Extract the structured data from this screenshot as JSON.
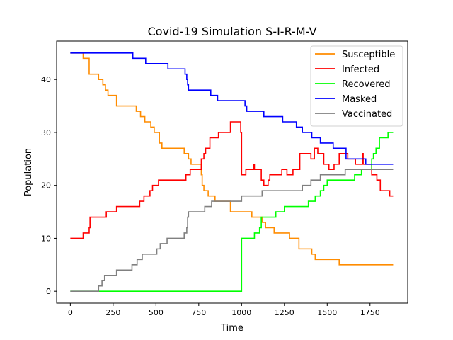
{
  "chart_data": {
    "type": "line",
    "title": "Covid-19 Simulation S-I-R-M-V",
    "xlabel": "Time",
    "ylabel": "Population",
    "xlim": [
      -80,
      1970
    ],
    "ylim": [
      -2.25,
      47.25
    ],
    "xticks": [
      0,
      250,
      500,
      750,
      1000,
      1250,
      1500,
      1750
    ],
    "yticks": [
      0,
      10,
      20,
      30,
      40
    ],
    "grid": false,
    "legend": "top-right",
    "series": [
      {
        "name": "Susceptible",
        "color": "#ff8c00",
        "points": [
          [
            0,
            45
          ],
          [
            75,
            45
          ],
          [
            75,
            44
          ],
          [
            110,
            44
          ],
          [
            110,
            41
          ],
          [
            165,
            41
          ],
          [
            165,
            40
          ],
          [
            190,
            40
          ],
          [
            190,
            39
          ],
          [
            205,
            39
          ],
          [
            205,
            38
          ],
          [
            220,
            38
          ],
          [
            220,
            37
          ],
          [
            270,
            37
          ],
          [
            270,
            35
          ],
          [
            385,
            35
          ],
          [
            385,
            34
          ],
          [
            410,
            34
          ],
          [
            410,
            33
          ],
          [
            435,
            33
          ],
          [
            435,
            32
          ],
          [
            470,
            32
          ],
          [
            470,
            31
          ],
          [
            490,
            31
          ],
          [
            490,
            30
          ],
          [
            520,
            30
          ],
          [
            520,
            28
          ],
          [
            535,
            28
          ],
          [
            535,
            27
          ],
          [
            665,
            27
          ],
          [
            665,
            26
          ],
          [
            690,
            26
          ],
          [
            690,
            25
          ],
          [
            705,
            25
          ],
          [
            705,
            24
          ],
          [
            765,
            24
          ],
          [
            765,
            22
          ],
          [
            770,
            22
          ],
          [
            770,
            20
          ],
          [
            780,
            20
          ],
          [
            780,
            19
          ],
          [
            805,
            19
          ],
          [
            805,
            18
          ],
          [
            845,
            18
          ],
          [
            845,
            17
          ],
          [
            935,
            17
          ],
          [
            935,
            15
          ],
          [
            1060,
            15
          ],
          [
            1060,
            14
          ],
          [
            1120,
            14
          ],
          [
            1120,
            13
          ],
          [
            1140,
            13
          ],
          [
            1140,
            12
          ],
          [
            1190,
            12
          ],
          [
            1190,
            11
          ],
          [
            1280,
            11
          ],
          [
            1280,
            10
          ],
          [
            1335,
            10
          ],
          [
            1335,
            8
          ],
          [
            1410,
            8
          ],
          [
            1410,
            7
          ],
          [
            1430,
            7
          ],
          [
            1430,
            6
          ],
          [
            1570,
            6
          ],
          [
            1570,
            5
          ],
          [
            1885,
            5
          ]
        ]
      },
      {
        "name": "Infected",
        "color": "#ff0000",
        "points": [
          [
            0,
            10
          ],
          [
            75,
            10
          ],
          [
            75,
            11
          ],
          [
            110,
            11
          ],
          [
            110,
            12
          ],
          [
            115,
            12
          ],
          [
            115,
            14
          ],
          [
            210,
            14
          ],
          [
            210,
            15
          ],
          [
            270,
            15
          ],
          [
            270,
            16
          ],
          [
            405,
            16
          ],
          [
            405,
            17
          ],
          [
            430,
            17
          ],
          [
            430,
            18
          ],
          [
            465,
            18
          ],
          [
            465,
            19
          ],
          [
            480,
            19
          ],
          [
            480,
            20
          ],
          [
            515,
            20
          ],
          [
            515,
            21
          ],
          [
            675,
            21
          ],
          [
            675,
            22
          ],
          [
            700,
            22
          ],
          [
            700,
            23
          ],
          [
            765,
            23
          ],
          [
            765,
            25
          ],
          [
            780,
            25
          ],
          [
            780,
            26
          ],
          [
            790,
            26
          ],
          [
            790,
            27
          ],
          [
            815,
            27
          ],
          [
            815,
            29
          ],
          [
            865,
            29
          ],
          [
            865,
            30
          ],
          [
            935,
            30
          ],
          [
            935,
            32
          ],
          [
            995,
            32
          ],
          [
            995,
            30
          ],
          [
            1000,
            30
          ],
          [
            1000,
            22
          ],
          [
            1025,
            22
          ],
          [
            1025,
            23
          ],
          [
            1070,
            23
          ],
          [
            1070,
            24
          ],
          [
            1075,
            24
          ],
          [
            1075,
            23
          ],
          [
            1115,
            23
          ],
          [
            1115,
            21
          ],
          [
            1130,
            21
          ],
          [
            1130,
            20
          ],
          [
            1155,
            20
          ],
          [
            1155,
            21
          ],
          [
            1165,
            21
          ],
          [
            1165,
            22
          ],
          [
            1235,
            22
          ],
          [
            1235,
            23
          ],
          [
            1265,
            23
          ],
          [
            1265,
            22
          ],
          [
            1300,
            22
          ],
          [
            1300,
            23
          ],
          [
            1340,
            23
          ],
          [
            1340,
            26
          ],
          [
            1405,
            26
          ],
          [
            1405,
            25
          ],
          [
            1425,
            25
          ],
          [
            1425,
            27
          ],
          [
            1445,
            27
          ],
          [
            1445,
            26
          ],
          [
            1480,
            26
          ],
          [
            1480,
            24
          ],
          [
            1510,
            24
          ],
          [
            1510,
            23
          ],
          [
            1540,
            23
          ],
          [
            1540,
            24
          ],
          [
            1570,
            24
          ],
          [
            1570,
            26
          ],
          [
            1620,
            26
          ],
          [
            1620,
            25
          ],
          [
            1665,
            25
          ],
          [
            1665,
            24
          ],
          [
            1705,
            24
          ],
          [
            1705,
            26
          ],
          [
            1710,
            26
          ],
          [
            1710,
            24
          ],
          [
            1760,
            24
          ],
          [
            1760,
            22
          ],
          [
            1790,
            22
          ],
          [
            1790,
            21
          ],
          [
            1810,
            21
          ],
          [
            1810,
            19
          ],
          [
            1865,
            19
          ],
          [
            1865,
            18
          ],
          [
            1885,
            18
          ]
        ]
      },
      {
        "name": "Recovered",
        "color": "#00ff00",
        "points": [
          [
            0,
            0
          ],
          [
            1000,
            0
          ],
          [
            1000,
            10
          ],
          [
            1075,
            10
          ],
          [
            1075,
            11
          ],
          [
            1105,
            11
          ],
          [
            1105,
            12
          ],
          [
            1115,
            12
          ],
          [
            1115,
            14
          ],
          [
            1200,
            14
          ],
          [
            1200,
            15
          ],
          [
            1250,
            15
          ],
          [
            1250,
            16
          ],
          [
            1390,
            16
          ],
          [
            1390,
            17
          ],
          [
            1430,
            17
          ],
          [
            1430,
            18
          ],
          [
            1460,
            18
          ],
          [
            1460,
            19
          ],
          [
            1480,
            19
          ],
          [
            1480,
            20
          ],
          [
            1500,
            20
          ],
          [
            1500,
            21
          ],
          [
            1660,
            21
          ],
          [
            1660,
            22
          ],
          [
            1700,
            22
          ],
          [
            1700,
            23
          ],
          [
            1760,
            23
          ],
          [
            1760,
            25
          ],
          [
            1770,
            25
          ],
          [
            1770,
            26
          ],
          [
            1785,
            26
          ],
          [
            1785,
            27
          ],
          [
            1805,
            27
          ],
          [
            1805,
            29
          ],
          [
            1855,
            29
          ],
          [
            1855,
            30
          ],
          [
            1885,
            30
          ]
        ]
      },
      {
        "name": "Masked",
        "color": "#0000ff",
        "points": [
          [
            0,
            45
          ],
          [
            365,
            45
          ],
          [
            365,
            44
          ],
          [
            440,
            44
          ],
          [
            440,
            43
          ],
          [
            570,
            43
          ],
          [
            570,
            42
          ],
          [
            670,
            42
          ],
          [
            670,
            41
          ],
          [
            680,
            41
          ],
          [
            680,
            40
          ],
          [
            685,
            40
          ],
          [
            685,
            39
          ],
          [
            690,
            39
          ],
          [
            690,
            38
          ],
          [
            820,
            38
          ],
          [
            820,
            37
          ],
          [
            860,
            37
          ],
          [
            860,
            36
          ],
          [
            1020,
            36
          ],
          [
            1020,
            35
          ],
          [
            1030,
            35
          ],
          [
            1030,
            34
          ],
          [
            1130,
            34
          ],
          [
            1130,
            33
          ],
          [
            1240,
            33
          ],
          [
            1240,
            32
          ],
          [
            1320,
            32
          ],
          [
            1320,
            31
          ],
          [
            1355,
            31
          ],
          [
            1355,
            30
          ],
          [
            1410,
            30
          ],
          [
            1410,
            29
          ],
          [
            1460,
            29
          ],
          [
            1460,
            28
          ],
          [
            1535,
            28
          ],
          [
            1535,
            27
          ],
          [
            1610,
            27
          ],
          [
            1610,
            25
          ],
          [
            1725,
            25
          ],
          [
            1725,
            24
          ],
          [
            1885,
            24
          ]
        ]
      },
      {
        "name": "Vaccinated",
        "color": "#808080",
        "points": [
          [
            0,
            0
          ],
          [
            165,
            0
          ],
          [
            165,
            1
          ],
          [
            185,
            1
          ],
          [
            185,
            2
          ],
          [
            200,
            2
          ],
          [
            200,
            3
          ],
          [
            270,
            3
          ],
          [
            270,
            4
          ],
          [
            360,
            4
          ],
          [
            360,
            5
          ],
          [
            390,
            5
          ],
          [
            390,
            6
          ],
          [
            420,
            6
          ],
          [
            420,
            7
          ],
          [
            505,
            7
          ],
          [
            505,
            8
          ],
          [
            525,
            8
          ],
          [
            525,
            9
          ],
          [
            565,
            9
          ],
          [
            565,
            10
          ],
          [
            665,
            10
          ],
          [
            665,
            11
          ],
          [
            680,
            11
          ],
          [
            680,
            12
          ],
          [
            685,
            12
          ],
          [
            685,
            14
          ],
          [
            690,
            14
          ],
          [
            690,
            15
          ],
          [
            785,
            15
          ],
          [
            785,
            16
          ],
          [
            825,
            16
          ],
          [
            825,
            17
          ],
          [
            1000,
            17
          ],
          [
            1000,
            18
          ],
          [
            1120,
            18
          ],
          [
            1120,
            19
          ],
          [
            1355,
            19
          ],
          [
            1355,
            20
          ],
          [
            1405,
            20
          ],
          [
            1405,
            21
          ],
          [
            1460,
            21
          ],
          [
            1460,
            22
          ],
          [
            1605,
            22
          ],
          [
            1605,
            23
          ],
          [
            1885,
            23
          ]
        ]
      }
    ]
  }
}
